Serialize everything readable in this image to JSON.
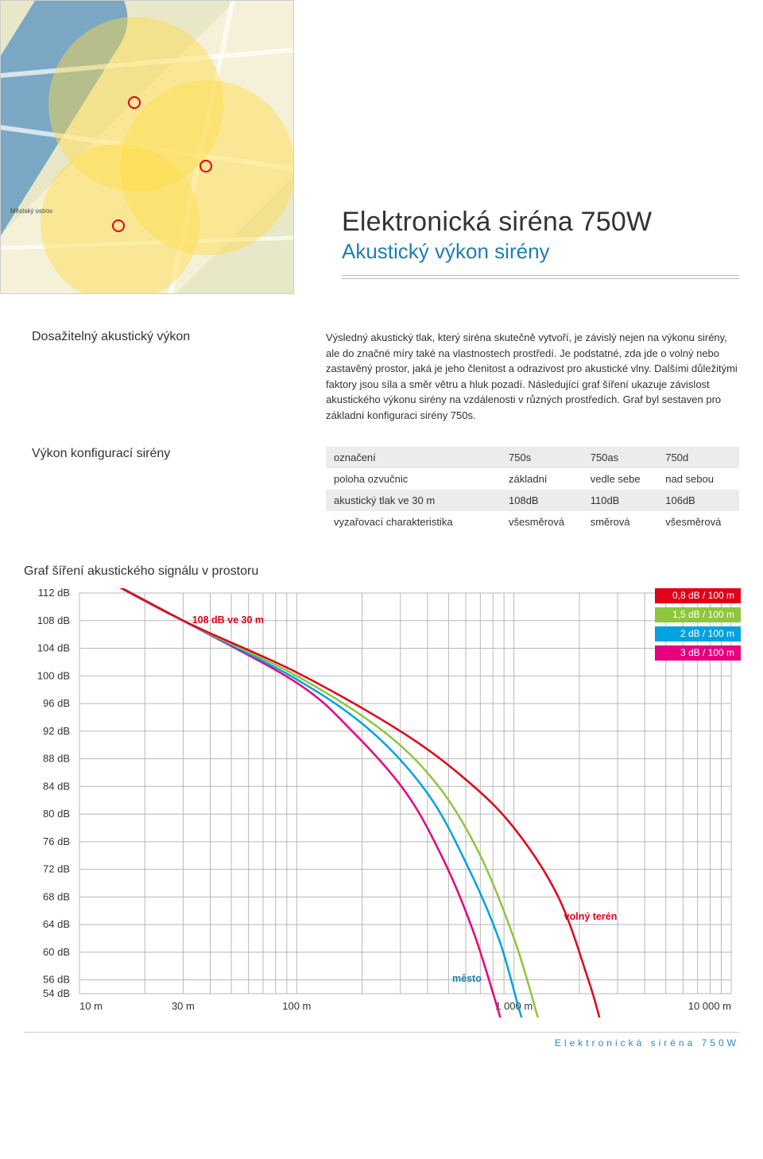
{
  "header": {
    "title": "Elektronická siréna 750W",
    "subtitle": "Akustický výkon sirény"
  },
  "map": {
    "label_island": "Městský ostrov"
  },
  "section1": {
    "label": "Dosažitelný akustický výkon",
    "body": "Výsledný akustický tlak, který siréna skutečně vytvoří, je závislý nejen na výkonu sirény, ale do značné míry také na vlastnostech prostředí. Je podstatné, zda jde o volný nebo zastavěný prostor, jaká je jeho členitost a odrazivost pro akustické vlny. Dalšími důležitými faktory jsou síla a směr větru a hluk pozadí. Následující graf šíření ukazuje závislost akustického výkonu sirény na vzdálenosti v různých prostředích. Graf byl sestaven pro základní konfiguraci sirény 750s."
  },
  "section2": {
    "label": "Výkon konfigurací sirény"
  },
  "table": {
    "h_mark": "označení",
    "h_750s": "750s",
    "h_750as": "750as",
    "h_750d": "750d",
    "r1_label": "poloha ozvučnic",
    "r1_c1": "základní",
    "r1_c2": "vedle sebe",
    "r1_c3": "nad sebou",
    "r2_label": "akustický tlak ve 30 m",
    "r2_c1": "108dB",
    "r2_c2": "110dB",
    "r2_c3": "106dB",
    "r3_label": "vyzařovací charakteristika",
    "r3_c1": "všesměrová",
    "r3_c2": "směrová",
    "r3_c3": "všesměrová"
  },
  "chart": {
    "title": "Graf šíření akustického signálu v prostoru",
    "y_ticks": [
      "112 dB",
      "108 dB",
      "104 dB",
      "100 dB",
      "96 dB",
      "92 dB",
      "88 dB",
      "84 dB",
      "80 dB",
      "76 dB",
      "72 dB",
      "68 dB",
      "64 dB",
      "60 dB",
      "56 dB",
      "54 dB"
    ],
    "x_ticks": [
      "10 m",
      "30 m",
      "100 m",
      "1 000 m",
      "10 000 m"
    ],
    "x_log_values": [
      10,
      30,
      100,
      1000,
      10000
    ],
    "y_values_top_to_bottom": [
      112,
      108,
      104,
      100,
      96,
      92,
      88,
      84,
      80,
      76,
      72,
      68,
      64,
      60,
      56,
      54
    ],
    "xlim": [
      10,
      10000
    ],
    "ylim": [
      54,
      112
    ],
    "grid_color": "#b8b8b8",
    "background": "#ffffff",
    "axis_font_size": 13,
    "annotation_108": "108 dB ve 30 m",
    "annotation_108_color": "#e2001a",
    "annotation_mesto": "město",
    "annotation_mesto_color": "#1a7fb0",
    "annotation_volny": "volný terén",
    "annotation_volny_color": "#e2001a",
    "line_width": 2.5,
    "legend": [
      {
        "label": "0,8 dB / 100 m",
        "color": "#e2001a"
      },
      {
        "label": "1,5 dB / 100 m",
        "color": "#8fc63f"
      },
      {
        "label": "2 dB / 100 m",
        "color": "#00a3e0"
      },
      {
        "label": "3 dB / 100 m",
        "color": "#e6007e"
      }
    ],
    "curves": {
      "red": {
        "color": "#e2001a",
        "points": [
          [
            10,
            116
          ],
          [
            30,
            108
          ],
          [
            100,
            100.5
          ],
          [
            300,
            92
          ],
          [
            600,
            85
          ],
          [
            1000,
            78
          ],
          [
            1600,
            68
          ],
          [
            2200,
            56
          ],
          [
            2500,
            50
          ]
        ]
      },
      "green": {
        "color": "#8fc63f",
        "points": [
          [
            10,
            116
          ],
          [
            30,
            108
          ],
          [
            100,
            100
          ],
          [
            250,
            92
          ],
          [
            450,
            84
          ],
          [
            700,
            74
          ],
          [
            1000,
            62
          ],
          [
            1250,
            52
          ],
          [
            1400,
            46
          ]
        ]
      },
      "blue": {
        "color": "#00a3e0",
        "points": [
          [
            10,
            116
          ],
          [
            30,
            108
          ],
          [
            100,
            99.5
          ],
          [
            220,
            92
          ],
          [
            400,
            83
          ],
          [
            600,
            73
          ],
          [
            850,
            62
          ],
          [
            1050,
            52
          ],
          [
            1200,
            46
          ]
        ]
      },
      "magenta": {
        "color": "#e6007e",
        "points": [
          [
            10,
            116
          ],
          [
            30,
            108
          ],
          [
            100,
            99
          ],
          [
            180,
            92
          ],
          [
            320,
            83
          ],
          [
            480,
            73
          ],
          [
            650,
            63
          ],
          [
            820,
            53
          ],
          [
            950,
            46
          ]
        ]
      }
    }
  },
  "footer": {
    "text": "Elektronická siréna 750W"
  }
}
